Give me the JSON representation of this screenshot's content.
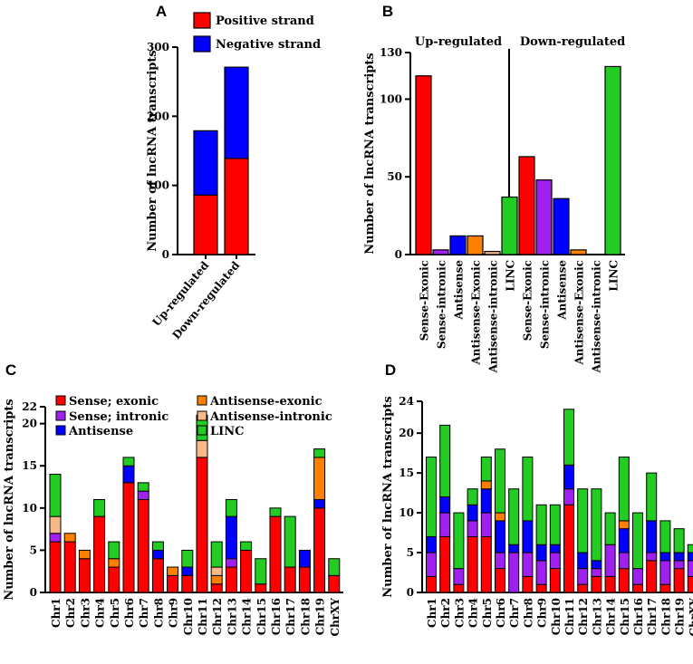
{
  "colors": {
    "red": "#ff0000",
    "blue": "#0000ff",
    "purple": "#a020f0",
    "orange": "#ff8000",
    "peach": "#f7b987",
    "green": "#22cc22"
  },
  "chart_data": [
    {
      "id": "A",
      "panel_label": "A",
      "type": "bar",
      "stacked": true,
      "ylabel": "Number of lncRNA transcripts",
      "ylim": [
        0,
        300
      ],
      "yticks": [
        0,
        100,
        200,
        300
      ],
      "categories": [
        "Up-regulated",
        "Down-regulated"
      ],
      "legend": [
        "Positive strand",
        "Negative strand"
      ],
      "series": [
        {
          "name": "Positive strand",
          "color": "red",
          "values": [
            86,
            139
          ]
        },
        {
          "name": "Negative strand",
          "color": "blue",
          "values": [
            93,
            132
          ]
        }
      ]
    },
    {
      "id": "B",
      "panel_label": "B",
      "type": "bar",
      "ylabel": "Number of lncRNA transcripts",
      "ylim": [
        0,
        130
      ],
      "yticks": [
        0,
        50,
        100,
        130
      ],
      "groups": [
        "Up-regulated",
        "Down-regulated"
      ],
      "categories": [
        "Sense-Exonic",
        "Sense-intronic",
        "Antisense",
        "Antisense-Exonic",
        "Antisense-intronic",
        "LINC"
      ],
      "category_colors": [
        "red",
        "purple",
        "blue",
        "orange",
        "peach",
        "green"
      ],
      "series": [
        {
          "name": "Up-regulated",
          "values": [
            115,
            3,
            12,
            12,
            2,
            37
          ]
        },
        {
          "name": "Down-regulated",
          "values": [
            63,
            48,
            36,
            3,
            0,
            121
          ]
        }
      ]
    },
    {
      "id": "C",
      "panel_label": "C",
      "type": "bar",
      "stacked": true,
      "ylabel": "Number of lncRNA transcripts",
      "ylim": [
        0,
        22
      ],
      "yticks": [
        0,
        5,
        10,
        15,
        20,
        22
      ],
      "categories": [
        "Chr1",
        "Chr2",
        "Chr3",
        "Chr4",
        "Chr5",
        "Chr6",
        "Chr7",
        "Chr8",
        "Chr9",
        "Chr10",
        "Chr11",
        "Chr12",
        "Chr13",
        "Chr14",
        "Chr15",
        "Chr16",
        "Chr17",
        "Chr18",
        "Chr19",
        "ChrXY"
      ],
      "legend": [
        "Sense; exonic",
        "Sense; intronic",
        "Antisense",
        "Antisense-exonic",
        "Antisense-intronic",
        "LINC"
      ],
      "series": [
        {
          "name": "Sense; exonic",
          "color": "red",
          "values": [
            6,
            6,
            4,
            9,
            3,
            13,
            11,
            4,
            2,
            2,
            16,
            1,
            3,
            5,
            1,
            9,
            3,
            3,
            10,
            2
          ]
        },
        {
          "name": "Sense; intronic",
          "color": "purple",
          "values": [
            1,
            0,
            0,
            0,
            0,
            0,
            1,
            0,
            0,
            0,
            0,
            0,
            1,
            0,
            0,
            0,
            0,
            0,
            0,
            0
          ]
        },
        {
          "name": "Antisense",
          "color": "blue",
          "values": [
            0,
            0,
            0,
            0,
            0,
            2,
            0,
            1,
            0,
            1,
            0,
            0,
            5,
            0,
            0,
            0,
            0,
            2,
            1,
            0
          ]
        },
        {
          "name": "Antisense-exonic",
          "color": "orange",
          "values": [
            0,
            1,
            1,
            0,
            1,
            0,
            0,
            0,
            1,
            0,
            0,
            1,
            0,
            0,
            0,
            0,
            0,
            0,
            5,
            0
          ]
        },
        {
          "name": "Antisense-intronic",
          "color": "peach",
          "values": [
            2,
            0,
            0,
            0,
            0,
            0,
            0,
            0,
            0,
            0,
            2,
            1,
            0,
            0,
            0,
            0,
            0,
            0,
            0,
            0
          ]
        },
        {
          "name": "LINC",
          "color": "green",
          "values": [
            5,
            0,
            0,
            2,
            2,
            1,
            1,
            1,
            0,
            2,
            3,
            3,
            2,
            1,
            3,
            1,
            6,
            0,
            1,
            2
          ]
        }
      ]
    },
    {
      "id": "D",
      "panel_label": "D",
      "type": "bar",
      "stacked": true,
      "ylabel": "Number of lncRNA transcripts",
      "ylim": [
        0,
        24
      ],
      "yticks": [
        0,
        5,
        10,
        15,
        20,
        24
      ],
      "categories": [
        "Chr1",
        "Chr2",
        "Chr3",
        "Chr4",
        "Chr5",
        "Chr6",
        "Chr7",
        "Chr8",
        "Chr9",
        "Chr10",
        "Chr11",
        "Chr12",
        "Chr13",
        "Chr14",
        "Chr15",
        "Chr16",
        "Chr17",
        "Chr18",
        "Chr19",
        "ChrXY"
      ],
      "series": [
        {
          "name": "Sense; exonic",
          "color": "red",
          "values": [
            2,
            7,
            1,
            7,
            7,
            3,
            0,
            2,
            1,
            3,
            11,
            1,
            2,
            2,
            3,
            1,
            4,
            1,
            3,
            2
          ]
        },
        {
          "name": "Sense; intronic",
          "color": "purple",
          "values": [
            3,
            3,
            2,
            2,
            3,
            2,
            5,
            3,
            3,
            2,
            2,
            2,
            1,
            4,
            2,
            2,
            1,
            3,
            1,
            2
          ]
        },
        {
          "name": "Antisense",
          "color": "blue",
          "values": [
            2,
            2,
            0,
            2,
            3,
            4,
            1,
            4,
            2,
            1,
            3,
            2,
            1,
            0,
            3,
            0,
            4,
            1,
            1,
            1
          ]
        },
        {
          "name": "Antisense-exonic",
          "color": "orange",
          "values": [
            0,
            0,
            0,
            0,
            1,
            1,
            0,
            0,
            0,
            0,
            0,
            0,
            0,
            0,
            1,
            0,
            0,
            0,
            0,
            0
          ]
        },
        {
          "name": "Antisense-intronic",
          "color": "peach",
          "values": [
            0,
            0,
            0,
            0,
            0,
            0,
            0,
            0,
            0,
            0,
            0,
            0,
            0,
            0,
            0,
            0,
            0,
            0,
            0,
            0
          ]
        },
        {
          "name": "LINC",
          "color": "green",
          "values": [
            10,
            9,
            7,
            2,
            3,
            8,
            7,
            8,
            5,
            5,
            7,
            8,
            9,
            4,
            8,
            7,
            6,
            4,
            3,
            1
          ]
        }
      ]
    }
  ]
}
